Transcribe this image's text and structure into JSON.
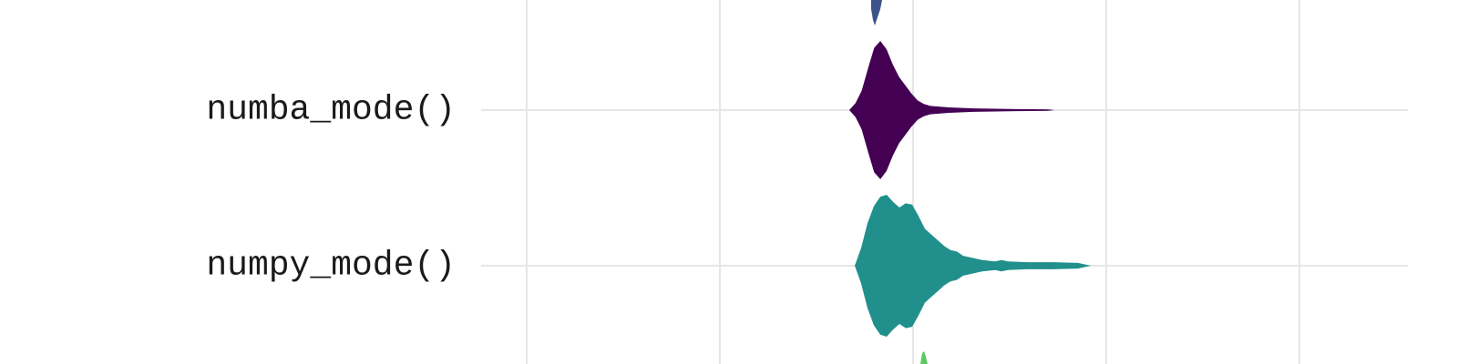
{
  "chart_data": {
    "type": "violin",
    "orientation": "horizontal",
    "grid": true,
    "xlim": [
      0,
      1
    ],
    "categories": [
      "numba_mode()",
      "numpy_mode()"
    ],
    "series": [
      {
        "category": "numba_mode()",
        "color": "#440154",
        "profile": [
          [
            0.0,
            0.0
          ],
          [
            0.01,
            0.1
          ],
          [
            0.02,
            0.28
          ],
          [
            0.03,
            0.6
          ],
          [
            0.04,
            0.9
          ],
          [
            0.05,
            1.0
          ],
          [
            0.06,
            0.88
          ],
          [
            0.07,
            0.66
          ],
          [
            0.08,
            0.48
          ],
          [
            0.09,
            0.36
          ],
          [
            0.1,
            0.24
          ],
          [
            0.11,
            0.14
          ],
          [
            0.12,
            0.09
          ],
          [
            0.13,
            0.06
          ],
          [
            0.16,
            0.04
          ],
          [
            0.2,
            0.025
          ],
          [
            0.27,
            0.015
          ],
          [
            0.32,
            0.01
          ],
          [
            0.33,
            0.0
          ]
        ]
      },
      {
        "category": "numpy_mode()",
        "color": "#21908C",
        "profile": [
          [
            0.0,
            0.0
          ],
          [
            0.01,
            0.25
          ],
          [
            0.02,
            0.6
          ],
          [
            0.03,
            0.84
          ],
          [
            0.04,
            0.97
          ],
          [
            0.05,
            1.0
          ],
          [
            0.06,
            0.9
          ],
          [
            0.07,
            0.82
          ],
          [
            0.08,
            0.88
          ],
          [
            0.09,
            0.86
          ],
          [
            0.1,
            0.7
          ],
          [
            0.11,
            0.52
          ],
          [
            0.12,
            0.44
          ],
          [
            0.13,
            0.36
          ],
          [
            0.14,
            0.28
          ],
          [
            0.15,
            0.22
          ],
          [
            0.16,
            0.2
          ],
          [
            0.17,
            0.14
          ],
          [
            0.18,
            0.12
          ],
          [
            0.19,
            0.1
          ],
          [
            0.2,
            0.08
          ],
          [
            0.21,
            0.07
          ],
          [
            0.22,
            0.06
          ],
          [
            0.23,
            0.08
          ],
          [
            0.24,
            0.06
          ],
          [
            0.27,
            0.05
          ],
          [
            0.31,
            0.05
          ],
          [
            0.35,
            0.04
          ],
          [
            0.37,
            0.0
          ]
        ]
      }
    ],
    "partial_series_colors": [
      "#3B528B",
      "#5DC863"
    ]
  }
}
